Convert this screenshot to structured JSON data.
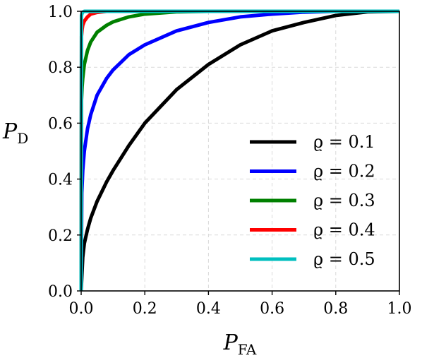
{
  "chart_data": {
    "type": "line",
    "xlabel": {
      "main": "P",
      "sub": "FA"
    },
    "ylabel": {
      "main": "P",
      "sub": "D"
    },
    "xlim": [
      0.0,
      1.0
    ],
    "ylim": [
      0.0,
      1.0
    ],
    "xticks": [
      "0.0",
      "0.2",
      "0.4",
      "0.6",
      "0.8",
      "1.0"
    ],
    "yticks": [
      "0.0",
      "0.2",
      "0.4",
      "0.6",
      "0.8",
      "1.0"
    ],
    "grid": true,
    "legend_position": "lower-right",
    "series": [
      {
        "name": "ϱ = 0.1",
        "color": "#000000",
        "x": [
          0.0,
          0.005,
          0.01,
          0.02,
          0.03,
          0.05,
          0.08,
          0.1,
          0.15,
          0.2,
          0.25,
          0.3,
          0.4,
          0.5,
          0.6,
          0.7,
          0.8,
          0.9,
          1.0
        ],
        "y": [
          0.0,
          0.12,
          0.17,
          0.22,
          0.26,
          0.32,
          0.39,
          0.43,
          0.52,
          0.6,
          0.66,
          0.72,
          0.81,
          0.88,
          0.93,
          0.96,
          0.985,
          0.998,
          1.0
        ]
      },
      {
        "name": "ϱ = 0.2",
        "color": "#0000ff",
        "x": [
          0.0,
          0.002,
          0.005,
          0.01,
          0.02,
          0.03,
          0.05,
          0.08,
          0.1,
          0.15,
          0.2,
          0.3,
          0.4,
          0.5,
          0.6,
          0.7,
          0.8,
          1.0
        ],
        "y": [
          0.0,
          0.35,
          0.43,
          0.5,
          0.58,
          0.63,
          0.7,
          0.76,
          0.79,
          0.845,
          0.88,
          0.93,
          0.96,
          0.98,
          0.99,
          0.997,
          1.0,
          1.0
        ]
      },
      {
        "name": "ϱ = 0.3",
        "color": "#008000",
        "x": [
          0.0,
          0.001,
          0.003,
          0.005,
          0.01,
          0.02,
          0.03,
          0.05,
          0.08,
          0.1,
          0.15,
          0.2,
          0.3,
          0.4,
          1.0
        ],
        "y": [
          0.0,
          0.68,
          0.73,
          0.76,
          0.81,
          0.86,
          0.89,
          0.925,
          0.95,
          0.962,
          0.98,
          0.99,
          0.998,
          1.0,
          1.0
        ]
      },
      {
        "name": "ϱ = 0.4",
        "color": "#ff0000",
        "x": [
          0.0,
          0.001,
          0.003,
          0.005,
          0.01,
          0.02,
          0.03,
          0.05,
          0.08,
          0.1,
          1.0
        ],
        "y": [
          0.0,
          0.91,
          0.935,
          0.95,
          0.965,
          0.98,
          0.99,
          0.996,
          1.0,
          1.0,
          1.0
        ]
      },
      {
        "name": "ϱ = 0.5",
        "color": "#00bfbf",
        "x": [
          0.0,
          0.001,
          0.003,
          0.005,
          0.01,
          0.02,
          1.0
        ],
        "y": [
          0.0,
          0.985,
          0.993,
          0.997,
          1.0,
          1.0,
          1.0
        ]
      }
    ]
  }
}
